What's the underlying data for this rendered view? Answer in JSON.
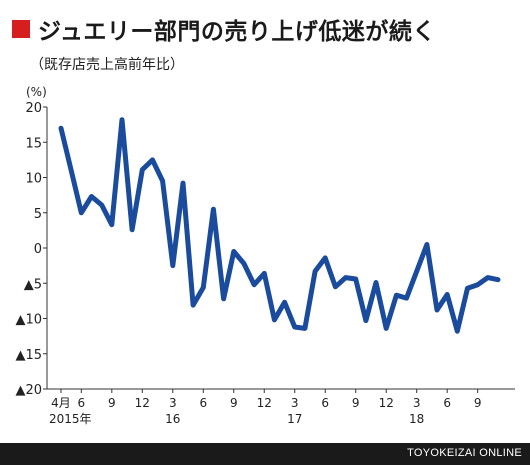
{
  "header": {
    "title": "ジュエリー部門の売り上げ低迷が続く",
    "subtitle": "（既存店売上高前年比）",
    "accent_color": "#d61e1e"
  },
  "footer": {
    "brand": "TOYOKEIZAI ONLINE"
  },
  "chart_data": {
    "type": "line",
    "title": "ジュエリー部門の売り上げ低迷が続く",
    "subtitle": "（既存店売上高前年比）",
    "ylabel": "(%)",
    "ylim": [
      -20,
      20
    ],
    "yticks": [
      {
        "value": 20,
        "label": "20"
      },
      {
        "value": 15,
        "label": "15"
      },
      {
        "value": 10,
        "label": "10"
      },
      {
        "value": 5,
        "label": "5"
      },
      {
        "value": 0,
        "label": "0"
      },
      {
        "value": -5,
        "label": "▲5"
      },
      {
        "value": -10,
        "label": "▲10"
      },
      {
        "value": -15,
        "label": "▲15"
      },
      {
        "value": -20,
        "label": "▲20"
      }
    ],
    "grid": false,
    "line_color": "#1a4b9c",
    "x_labels": [
      {
        "index": 0,
        "label": "4月"
      },
      {
        "index": 2,
        "label": "6"
      },
      {
        "index": 5,
        "label": "9"
      },
      {
        "index": 8,
        "label": "12"
      },
      {
        "index": 11,
        "label": "3"
      },
      {
        "index": 14,
        "label": "6"
      },
      {
        "index": 17,
        "label": "9"
      },
      {
        "index": 20,
        "label": "12"
      },
      {
        "index": 23,
        "label": "3"
      },
      {
        "index": 26,
        "label": "6"
      },
      {
        "index": 29,
        "label": "9"
      },
      {
        "index": 32,
        "label": "12"
      },
      {
        "index": 35,
        "label": "3"
      },
      {
        "index": 38,
        "label": "6"
      },
      {
        "index": 41,
        "label": "9"
      }
    ],
    "year_labels": [
      {
        "index": 0,
        "label": "2015年"
      },
      {
        "index": 11,
        "label": "16"
      },
      {
        "index": 23,
        "label": "17"
      },
      {
        "index": 35,
        "label": "18"
      }
    ],
    "series": [
      {
        "values": [
          17,
          11,
          5,
          7.3,
          6.1,
          3.3,
          18.2,
          2.6,
          11.1,
          12.5,
          9.5,
          -2.5,
          9.2,
          -8.1,
          -5.6,
          5.5,
          -7.2,
          -0.5,
          -2.2,
          -5.2,
          -3.6,
          -10.2,
          -7.7,
          -11.2,
          -11.4,
          -3.3,
          -1.4,
          -5.5,
          -4.2,
          -4.4,
          -10.3,
          -4.9,
          -11.4,
          -6.7,
          -7.1,
          -3.3,
          0.5,
          -8.8,
          -6.6,
          -11.8,
          -5.7,
          -5.2,
          -4.2,
          -4.5
        ]
      }
    ]
  }
}
